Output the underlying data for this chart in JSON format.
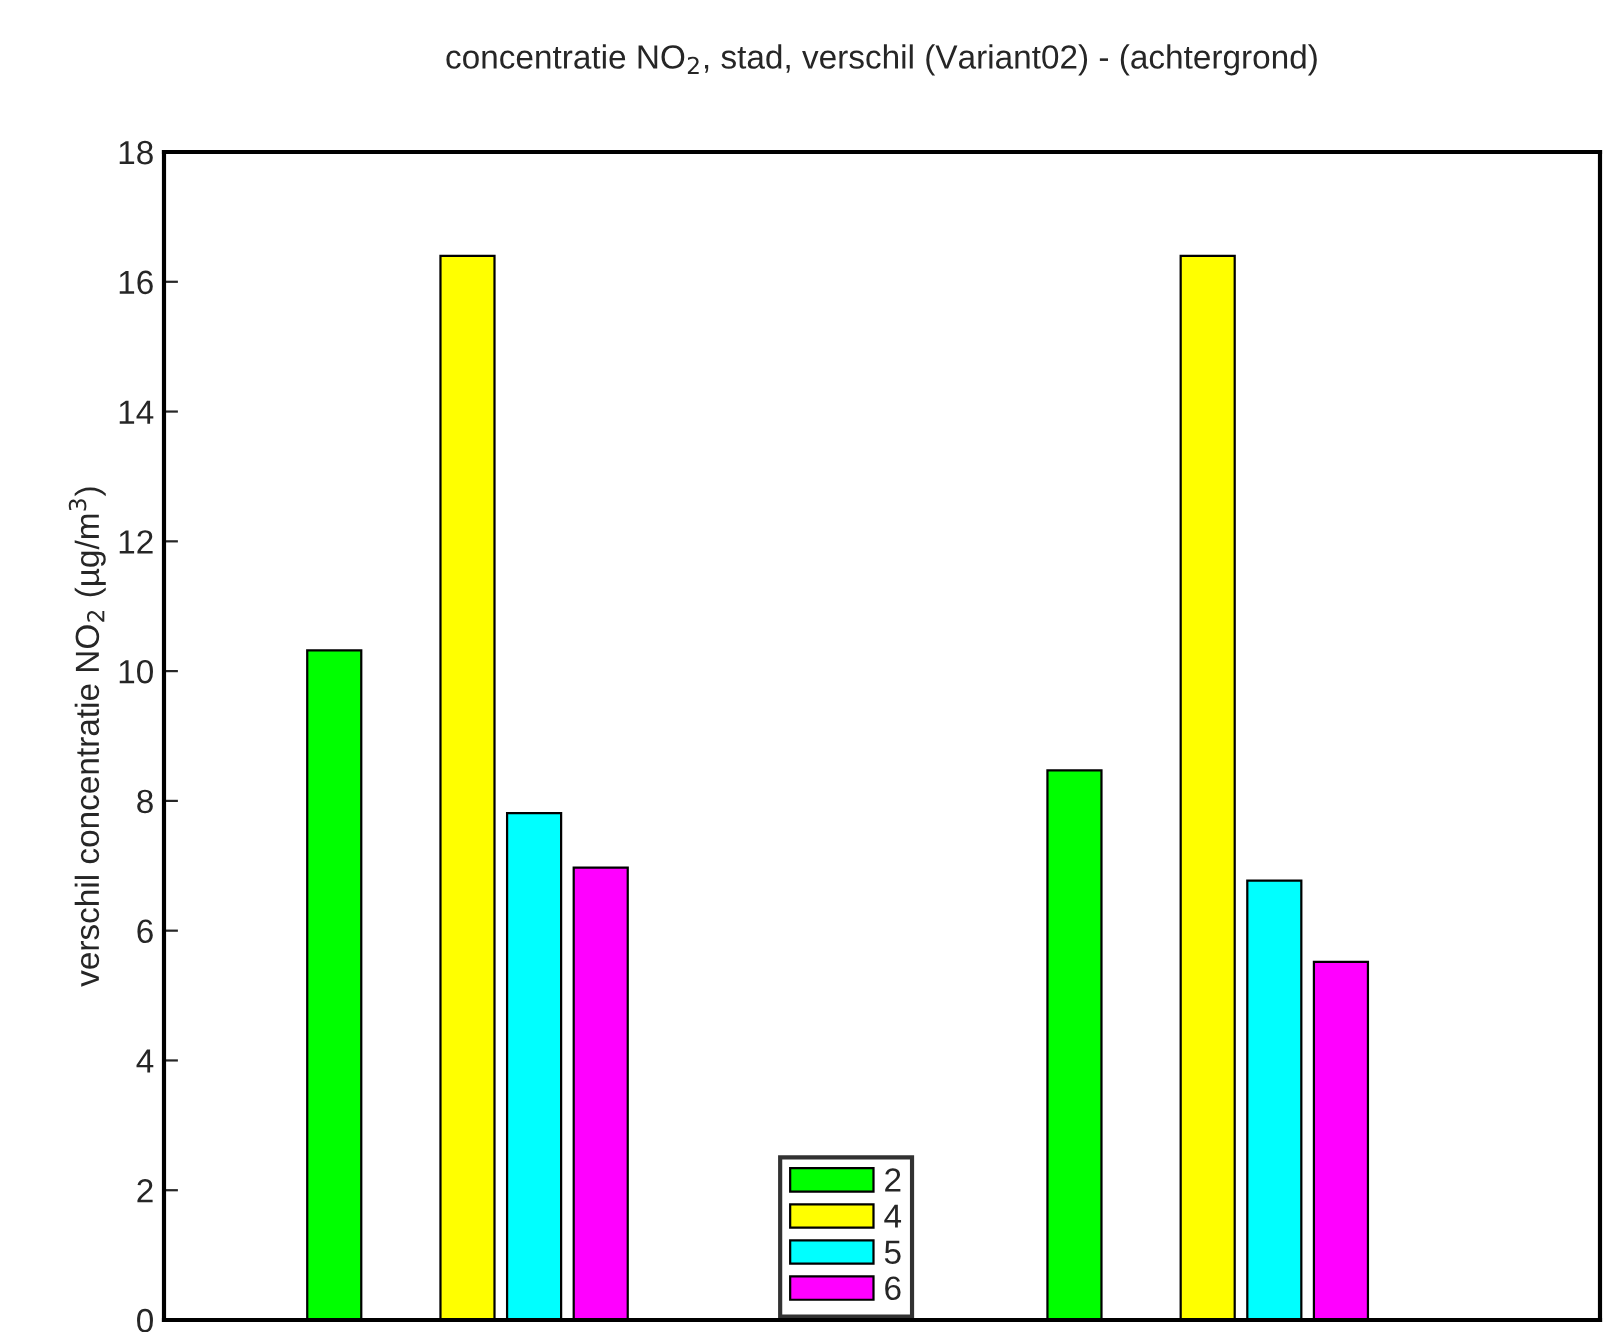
{
  "chart_data": {
    "type": "bar",
    "title": "concentratie NO$_{2}$, stad, verschil (Variant02) - (achtergrond)",
    "ylabel": "verschil concentratie NO$_{2}$ (µg/m$^{3}$)",
    "categories": [
      null,
      null
    ],
    "series": [
      {
        "name": "2",
        "color": "#00ff00",
        "values": [
          10.32,
          8.47
        ]
      },
      {
        "name": "4",
        "color": "#ffff00",
        "values": [
          16.4,
          16.4
        ]
      },
      {
        "name": "5",
        "color": "#00ffff",
        "values": [
          7.81,
          6.77
        ]
      },
      {
        "name": "6",
        "color": "#ff00ff",
        "values": [
          6.97,
          5.52
        ]
      }
    ],
    "ylim": [
      0,
      18
    ],
    "yticks": [
      0,
      2,
      4,
      6,
      8,
      10,
      12,
      14,
      16,
      18
    ],
    "grid": false,
    "legend": "bottom",
    "tick_labels": "y"
  }
}
